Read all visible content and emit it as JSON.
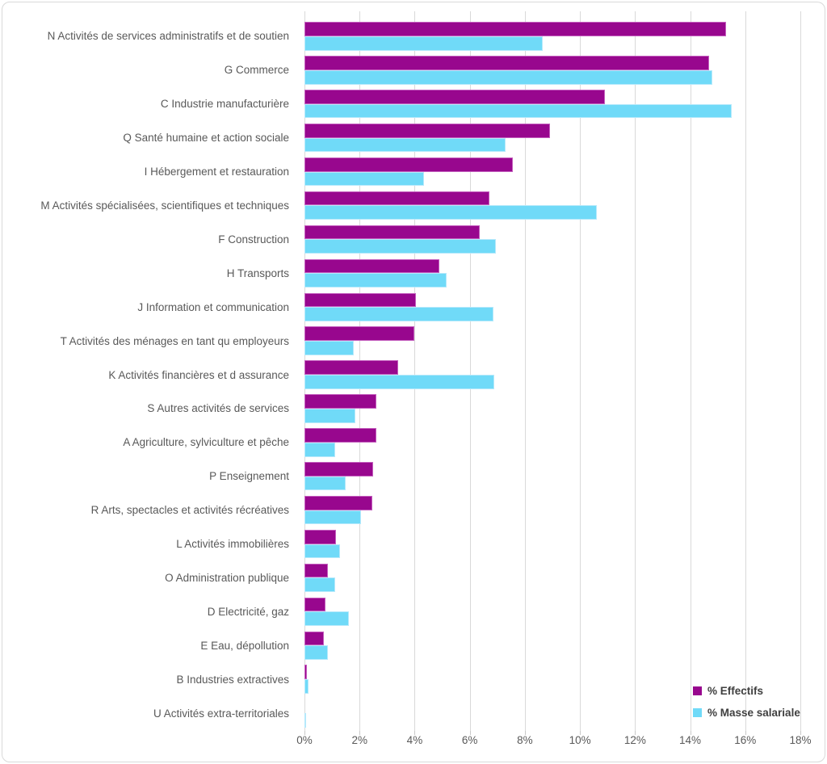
{
  "chart_data": {
    "type": "bar",
    "orientation": "horizontal",
    "title": "",
    "categories": [
      "N Activités de services administratifs et de soutien",
      "G Commerce",
      "C Industrie manufacturière",
      "Q Santé humaine et action sociale",
      "I Hébergement et restauration",
      "M Activités spécialisées, scientifiques et techniques",
      "F Construction",
      "H Transports",
      "J Information et communication",
      "T Activités des ménages en tant qu employeurs",
      "K Activités financières et d assurance",
      "S Autres activités de services",
      "A Agriculture, sylviculture et pêche",
      "P Enseignement",
      "R Arts, spectacles et activités récréatives",
      "L Activités immobilières",
      "O Administration publique",
      "D Electricité, gaz",
      "E Eau, dépollution",
      "B Industries extractives",
      "U Activités extra-territoriales"
    ],
    "series": [
      {
        "name": "% Effectifs",
        "color": "#98078E",
        "border_color": "#C45FBE",
        "values": [
          15.3,
          14.7,
          10.9,
          8.9,
          7.55,
          6.7,
          6.35,
          4.9,
          4.05,
          4.0,
          3.4,
          2.6,
          2.6,
          2.5,
          2.45,
          1.15,
          0.85,
          0.75,
          0.7,
          0.1,
          0
        ]
      },
      {
        "name": "% Masse salariale",
        "color": "#70DAF8",
        "border_color": "#B6E9FB",
        "values": [
          8.65,
          14.8,
          15.5,
          7.3,
          4.35,
          10.6,
          6.95,
          5.15,
          6.85,
          1.8,
          6.9,
          1.85,
          1.1,
          1.5,
          2.05,
          1.3,
          1.1,
          1.6,
          0.85,
          0.15,
          0.04
        ]
      }
    ],
    "x_axis": {
      "min": 0,
      "max": 18,
      "tick_step": 2,
      "tick_labels": [
        "0%",
        "2%",
        "4%",
        "6%",
        "8%",
        "10%",
        "12%",
        "14%",
        "16%",
        "18%"
      ]
    },
    "grid": true,
    "legend_position": "bottom-right",
    "colors": {
      "gridline": "#D9D9D9",
      "axis_text": "#595959",
      "legend_text": "#3F3F3F",
      "frame_border": "#D9D9D9"
    }
  }
}
